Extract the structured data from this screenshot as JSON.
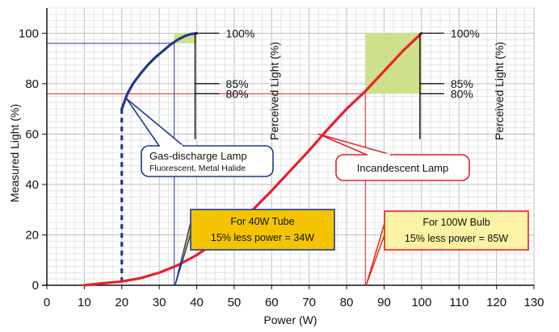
{
  "chart_data": {
    "type": "line",
    "xlabel": "Power (W)",
    "ylabel": "Measured Light (%)",
    "xlim": [
      0,
      130
    ],
    "ylim": [
      0,
      110
    ],
    "x_ticks": [
      0,
      10,
      20,
      30,
      40,
      50,
      60,
      70,
      80,
      90,
      100,
      110,
      120,
      130
    ],
    "y_ticks": [
      0,
      20,
      40,
      60,
      80,
      100
    ],
    "grid": true,
    "series": [
      {
        "id": "gas",
        "color": "#1f3a8a",
        "x": [
          20,
          20.5,
          21.5,
          23,
          25,
          27,
          29,
          31,
          33,
          35,
          37,
          38.5,
          40
        ],
        "y": [
          70,
          72,
          76,
          80,
          84,
          87.5,
          90.5,
          93,
          95.5,
          97.5,
          99,
          99.7,
          100
        ],
        "dashed_drop": {
          "x": 20,
          "y_from": 70,
          "y_to": 0
        }
      },
      {
        "id": "incandescent",
        "color": "#e8202a",
        "x": [
          10,
          15,
          20,
          25,
          30,
          35,
          40,
          45,
          50,
          55,
          60,
          65,
          70,
          75,
          80,
          85,
          90,
          95,
          100
        ],
        "y": [
          0,
          0.8,
          1.5,
          2.8,
          5,
          8,
          12,
          17,
          23,
          30,
          37.5,
          45.5,
          53.5,
          62,
          70,
          77,
          85,
          93,
          100
        ]
      }
    ],
    "perceived_light_axes": [
      {
        "x_start": 40,
        "title": "Perceived Light (%)",
        "ticks": [
          {
            "label": "100%",
            "y": 100
          },
          {
            "label": "85%",
            "y": 80
          },
          {
            "label": "80%",
            "y": 76
          }
        ]
      },
      {
        "x_start": 100,
        "title": "Perceived Light (%)",
        "ticks": [
          {
            "label": "100%",
            "y": 100
          },
          {
            "label": "85%",
            "y": 80
          },
          {
            "label": "80%",
            "y": 76
          }
        ]
      }
    ],
    "reference_lines": [
      {
        "series": "gas",
        "y": 96,
        "x": 34,
        "color": "#1f3a8a"
      },
      {
        "series": "incandescent",
        "y": 76,
        "x": 85,
        "color": "#e8202a"
      }
    ],
    "highlight_regions": [
      {
        "x": [
          34,
          40
        ],
        "y": [
          96,
          100
        ],
        "color": "#cfe08a"
      },
      {
        "x": [
          85,
          100
        ],
        "y": [
          76,
          100
        ],
        "color": "#cfe08a"
      }
    ],
    "annotations": [
      {
        "id": "gas-callout",
        "title": "Gas-discharge Lamp",
        "subtitle": "Fluorescent, Metal Halide",
        "border": "#1f3a8a",
        "fill": "#ffffff"
      },
      {
        "id": "incandescent-callout",
        "title": "Incandescent Lamp",
        "border": "#e8202a",
        "fill": "#ffffff"
      },
      {
        "id": "tube-box",
        "line1": "For 40W Tube",
        "line2": "15% less power = 34W",
        "border": "#1f3a8a",
        "fill": "#f5c400"
      },
      {
        "id": "bulb-box",
        "line1": "For 100W Bulb",
        "line2": "15% less power = 85W",
        "border": "#e8202a",
        "fill": "#fbf3a3"
      }
    ]
  }
}
